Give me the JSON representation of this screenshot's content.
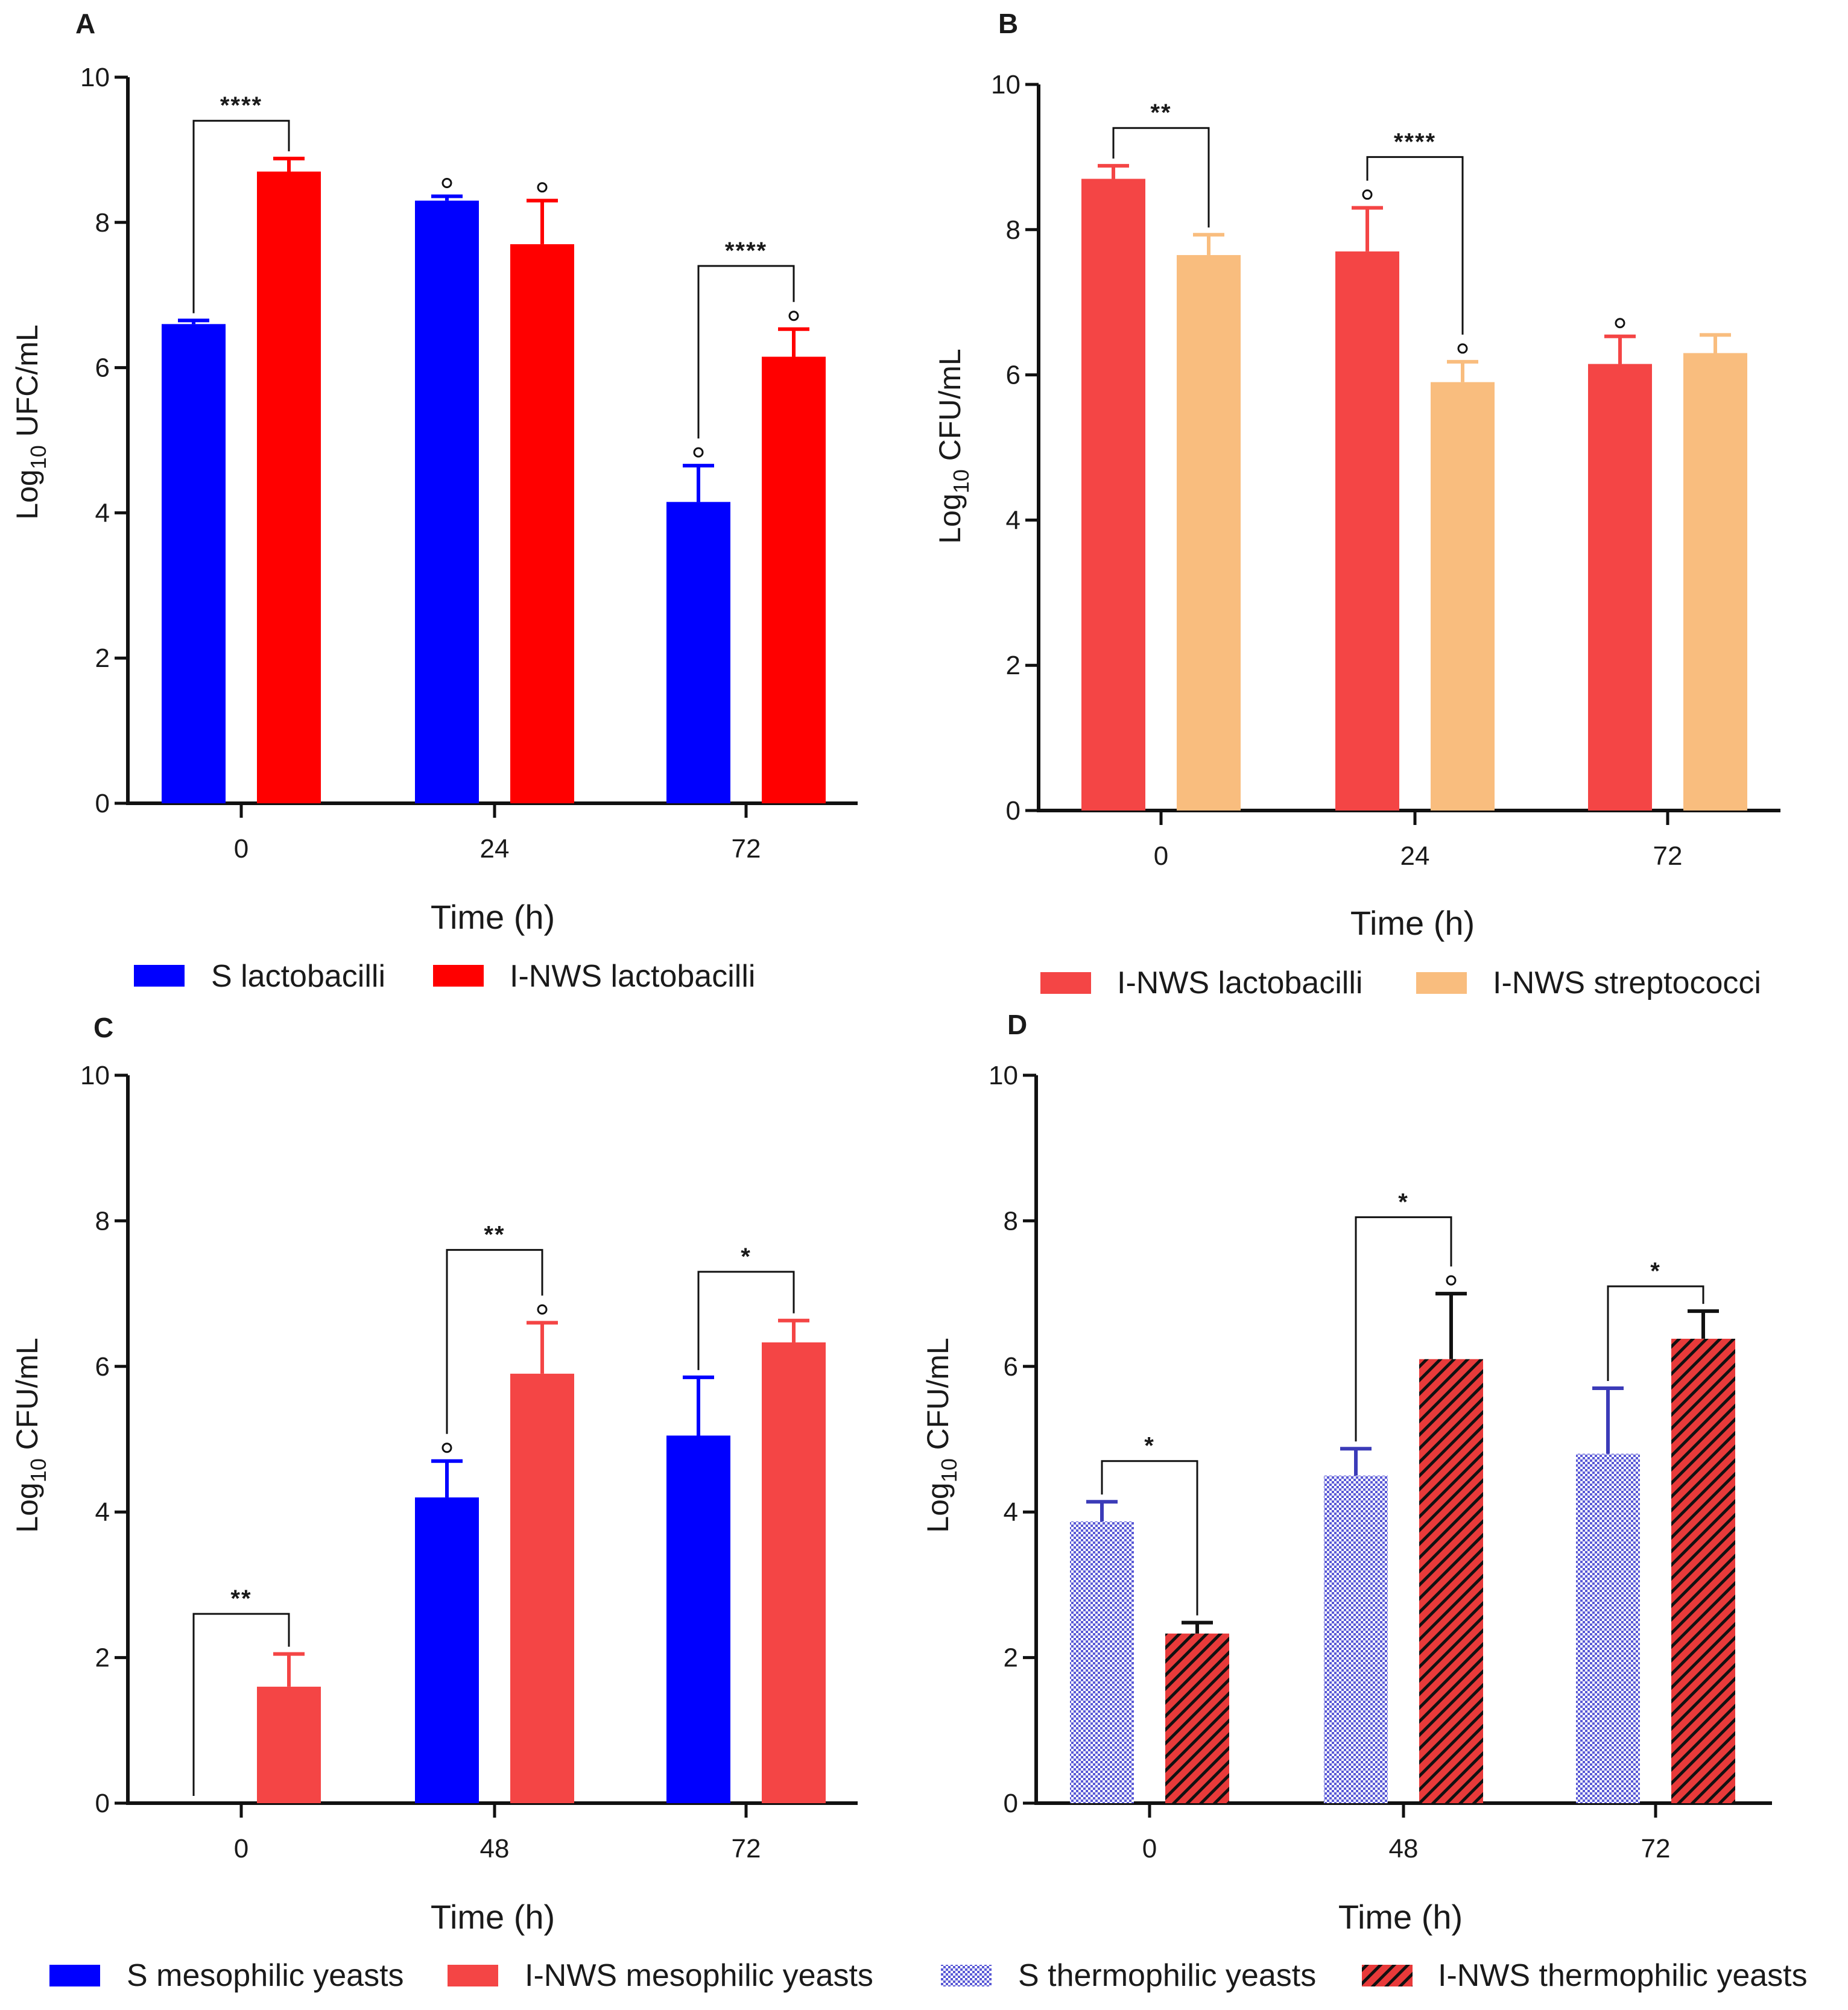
{
  "chart_data": [
    {
      "panel": "A",
      "type": "bar",
      "ylabel_base": "Log",
      "ylabel_sub": "10",
      "ylabel_rest": " UFC/mL",
      "xlabel": "Time (h)",
      "ylim": [
        0,
        10
      ],
      "yticks": [
        "0",
        "2",
        "4",
        "6",
        "8",
        "10"
      ],
      "categories": [
        "0",
        "24",
        "72"
      ],
      "series": [
        {
          "name": "S lactobacilli",
          "color": "#0000ff",
          "pattern": "solid",
          "values": [
            6.6,
            8.3,
            4.15
          ],
          "errors": [
            0.05,
            0.06,
            0.5
          ]
        },
        {
          "name": "I-NWS lactobacilli",
          "color": "#ff0000",
          "pattern": "solid",
          "values": [
            8.7,
            7.7,
            6.15
          ],
          "errors": [
            0.18,
            0.6,
            0.38
          ]
        }
      ],
      "degree_marks": [
        [
          false,
          true,
          true
        ],
        [
          false,
          true,
          true
        ]
      ],
      "significance": [
        {
          "group": 0,
          "label": "****",
          "level": 9.4
        },
        {
          "group": 2,
          "label": "****",
          "level": 7.4
        }
      ]
    },
    {
      "panel": "B",
      "type": "bar",
      "ylabel_base": "Log",
      "ylabel_sub": "10",
      "ylabel_rest": " CFU/mL",
      "xlabel": "Time (h)",
      "ylim": [
        0,
        10
      ],
      "yticks": [
        "0",
        "2",
        "4",
        "6",
        "8",
        "10"
      ],
      "categories": [
        "0",
        "24",
        "72"
      ],
      "series": [
        {
          "name": "I-NWS lactobacilli",
          "color": "#f44545",
          "pattern": "solid",
          "values": [
            8.7,
            7.7,
            6.15
          ],
          "errors": [
            0.18,
            0.6,
            0.38
          ]
        },
        {
          "name": "I-NWS streptococci",
          "color": "#f9bd7e",
          "pattern": "solid",
          "values": [
            7.65,
            5.9,
            6.3
          ],
          "errors": [
            0.28,
            0.28,
            0.25
          ]
        }
      ],
      "degree_marks": [
        [
          false,
          true,
          true
        ],
        [
          false,
          true,
          false
        ]
      ],
      "significance": [
        {
          "group": 0,
          "label": "**",
          "level": 9.4
        },
        {
          "group": 1,
          "label": "****",
          "level": 9.0
        }
      ]
    },
    {
      "panel": "C",
      "type": "bar",
      "ylabel_base": "Log",
      "ylabel_sub": "10",
      "ylabel_rest": " CFU/mL",
      "xlabel": "Time (h)",
      "ylim": [
        0,
        10
      ],
      "yticks": [
        "0",
        "2",
        "4",
        "6",
        "8",
        "10"
      ],
      "categories": [
        "0",
        "48",
        "72"
      ],
      "series": [
        {
          "name": "S mesophilic yeasts",
          "color": "#0000ff",
          "pattern": "solid",
          "values": [
            0,
            4.2,
            5.05
          ],
          "errors": [
            0,
            0.5,
            0.8
          ]
        },
        {
          "name": "I-NWS mesophilic yeasts",
          "color": "#f44545",
          "pattern": "solid",
          "values": [
            1.6,
            5.9,
            6.33
          ],
          "errors": [
            0.45,
            0.7,
            0.3
          ]
        }
      ],
      "degree_marks": [
        [
          false,
          true,
          false
        ],
        [
          false,
          true,
          false
        ]
      ],
      "significance": [
        {
          "group": 0,
          "label": "**",
          "level": 2.6
        },
        {
          "group": 1,
          "label": "**",
          "level": 7.6
        },
        {
          "group": 2,
          "label": "*",
          "level": 7.3
        }
      ]
    },
    {
      "panel": "D",
      "type": "bar",
      "ylabel_base": "Log",
      "ylabel_sub": "10",
      "ylabel_rest": " CFU/mL",
      "xlabel": "Time (h)",
      "ylim": [
        0,
        10
      ],
      "yticks": [
        "0",
        "2",
        "4",
        "6",
        "8",
        "10"
      ],
      "categories": [
        "0",
        "48",
        "72"
      ],
      "series": [
        {
          "name": "S thermophilic yeasts",
          "color": "#6b6bdc",
          "pattern": "checker",
          "values": [
            3.87,
            4.5,
            4.8
          ],
          "errors": [
            0.27,
            0.37,
            0.9
          ]
        },
        {
          "name": "I-NWS thermophilic yeasts",
          "color": "#e83a3a",
          "pattern": "hatch",
          "values": [
            2.33,
            6.1,
            6.38
          ],
          "errors": [
            0.15,
            0.9,
            0.38
          ]
        }
      ],
      "degree_marks": [
        [
          false,
          false,
          false
        ],
        [
          false,
          true,
          false
        ]
      ],
      "significance": [
        {
          "group": 0,
          "label": "*",
          "level": 4.7
        },
        {
          "group": 1,
          "label": "*",
          "level": 8.05
        },
        {
          "group": 2,
          "label": "*",
          "level": 7.1
        }
      ]
    }
  ]
}
